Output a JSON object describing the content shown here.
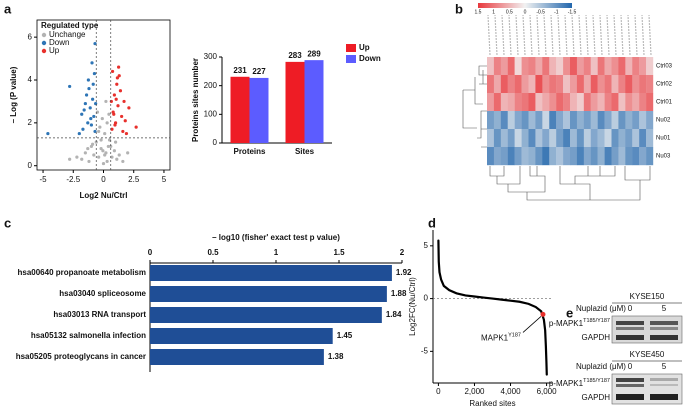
{
  "chart_data": [
    {
      "type": "scatter",
      "panel": "a",
      "xlabel": "Log2 Nu/Ctrl",
      "ylabel": "– Log (P value)",
      "legend_title": "Regulated type",
      "legend": "upper left",
      "xlim": [
        -5.5,
        5.5
      ],
      "xticks": [
        -5,
        -2.5,
        0,
        2.5,
        5
      ],
      "ylim": [
        -0.2,
        6.8
      ],
      "yticks": [
        0,
        2,
        4,
        6
      ],
      "hlines": [
        1.3
      ],
      "vlines": [
        -0.6,
        0.6
      ],
      "series": [
        {
          "name": "Unchange",
          "color": "#b3b3b3",
          "x": [
            -1.8,
            -1.5,
            -1.2,
            -1.0,
            -0.8,
            -0.6,
            -0.4,
            -0.3,
            -0.2,
            -0.1,
            0,
            0.1,
            0.2,
            0.3,
            0.4,
            0.5,
            0.7,
            0.9,
            1.1,
            1.3,
            1.6,
            -2.2,
            -0.5,
            0.3,
            -0.2,
            0.1,
            0.6,
            -0.9,
            1.0,
            -1.3,
            0.2,
            -0.4,
            0.45,
            -0.05,
            2.0,
            -2.8
          ],
          "y": [
            0.3,
            0.6,
            0.2,
            0.9,
            0.5,
            1.1,
            0.4,
            1.8,
            0.8,
            2.2,
            0.1,
            1.5,
            0.6,
            2.0,
            0.9,
            1.2,
            0.4,
            0.7,
            0.3,
            0.5,
            0.2,
            0.4,
            2.5,
            0.2,
            1.2,
            0.5,
            0.9,
            1.0,
            1.1,
            0.8,
            3.0,
            1.6,
            2.4,
            0.7,
            0.6,
            0.3
          ]
        },
        {
          "name": "Down",
          "color": "#2e75b6",
          "x": [
            -0.7,
            -0.8,
            -0.9,
            -1.0,
            -1.1,
            -1.2,
            -1.3,
            -1.5,
            -1.7,
            -0.75,
            -0.95,
            -1.4,
            -1.8,
            -2.0,
            -0.7,
            -1.05,
            -1.25,
            -0.85,
            -2.8,
            -4.6,
            -1.6,
            -0.65
          ],
          "y": [
            1.6,
            2.3,
            3.1,
            1.9,
            2.7,
            3.6,
            2.0,
            2.9,
            1.7,
            4.3,
            4.8,
            3.3,
            2.4,
            1.5,
            5.7,
            2.2,
            4.0,
            3.8,
            3.7,
            1.5,
            2.6,
            2.9
          ]
        },
        {
          "name": "Up",
          "color": "#e8302c",
          "x": [
            0.7,
            0.8,
            0.9,
            1.0,
            1.1,
            1.2,
            1.3,
            1.5,
            1.7,
            0.75,
            0.95,
            1.4,
            1.8,
            2.1,
            1.05,
            1.25,
            0.85,
            1.6,
            2.7,
            0.65,
            1.15,
            1.9
          ],
          "y": [
            1.7,
            2.5,
            3.3,
            2.0,
            3.8,
            2.8,
            4.2,
            2.3,
            3.0,
            4.4,
            1.9,
            3.5,
            2.1,
            2.7,
            3.1,
            4.6,
            2.4,
            1.6,
            1.8,
            3.0,
            4.1,
            1.5
          ]
        }
      ]
    },
    {
      "type": "bar",
      "ylabel": "Proteins sites number",
      "categories": [
        "Proteins",
        "Sites"
      ],
      "legend": "upper right",
      "ylim": [
        0,
        300
      ],
      "yticks": [
        0,
        100,
        200,
        300
      ],
      "series": [
        {
          "name": "Up",
          "color": "#ee1c25",
          "values": [
            231,
            283
          ]
        },
        {
          "name": "Down",
          "color": "#5c5cff",
          "values": [
            227,
            289
          ]
        }
      ]
    },
    {
      "type": "heatmap",
      "panel": "b",
      "rows": [
        "Ctrl03",
        "Ctrl02",
        "Ctrl01",
        "Nu02",
        "Nu01",
        "Nu03"
      ],
      "colorbar_ticks": [
        1.5,
        1,
        0.5,
        0,
        -0.5,
        -1,
        -1.5
      ],
      "colors": [
        "#2166ac",
        "#f2f2f2",
        "#e8383d"
      ],
      "values": [
        [
          0.4,
          0.9,
          0.7,
          1.1,
          0.2,
          0.8,
          0.9,
          0.6,
          1.0,
          0.5,
          0.3,
          0.8,
          1.2,
          0.7,
          0.9,
          0.4,
          1.0,
          0.6,
          0.8,
          1.1,
          0.5,
          0.9,
          0.7,
          0.3
        ],
        [
          1.0,
          0.6,
          1.2,
          0.9,
          1.1,
          0.7,
          0.5,
          1.3,
          0.8,
          1.0,
          0.9,
          0.4,
          0.7,
          1.1,
          0.6,
          1.2,
          0.8,
          1.0,
          0.5,
          0.9,
          1.2,
          0.8,
          1.0,
          0.9
        ],
        [
          0.7,
          1.1,
          0.5,
          0.6,
          0.9,
          1.0,
          1.2,
          0.4,
          0.6,
          0.8,
          1.1,
          0.9,
          0.5,
          0.3,
          1.0,
          0.7,
          0.5,
          0.9,
          1.1,
          0.4,
          0.8,
          0.6,
          0.9,
          1.1
        ],
        [
          -0.9,
          -0.7,
          -1.1,
          -0.4,
          -0.8,
          -1.0,
          -0.6,
          -0.9,
          -0.3,
          -1.2,
          -0.8,
          -0.5,
          -1.0,
          -0.7,
          -0.9,
          -0.6,
          -1.1,
          -0.8,
          -0.4,
          -1.0,
          -0.7,
          -0.9,
          -0.5,
          -0.8
        ],
        [
          -0.5,
          -1.0,
          -0.6,
          -0.9,
          -0.3,
          -0.7,
          -1.1,
          -0.5,
          -0.8,
          -0.4,
          -0.9,
          -1.2,
          -0.6,
          -1.0,
          -0.4,
          -0.8,
          -0.6,
          -0.3,
          -1.0,
          -0.7,
          -0.9,
          -0.5,
          -1.1,
          -0.6
        ],
        [
          -1.1,
          -0.8,
          -0.9,
          -1.2,
          -0.9,
          -0.6,
          -0.7,
          -1.0,
          -1.3,
          -0.7,
          -0.5,
          -0.8,
          -0.9,
          -1.2,
          -0.8,
          -1.0,
          -0.7,
          -1.2,
          -0.9,
          -0.6,
          -1.0,
          -1.1,
          -0.8,
          -1.0
        ]
      ]
    },
    {
      "type": "hbar",
      "panel": "c",
      "title": "– log10 (fisher' exact test p value)",
      "color": "#1f4e96",
      "categories": [
        "hsa00640 propanoate metabolism",
        "hsa03040 spliceosome",
        "hsa03013 RNA transport",
        "hsa05132 salmonella infection",
        "hsa05205 proteoglycans in cancer"
      ],
      "values": [
        1.92,
        1.88,
        1.84,
        1.45,
        1.38
      ],
      "xlim": [
        0,
        2
      ],
      "xticks": [
        0,
        0.5,
        1,
        1.5,
        2
      ]
    },
    {
      "type": "line",
      "panel": "d",
      "xlabel": "Ranked sites",
      "ylabel": "Log2FC(Nu/Ctrl)",
      "color": "#000000",
      "xlim": [
        -300,
        6300
      ],
      "xticks": [
        0,
        {
          "value": 2000,
          "label": "2,000"
        },
        {
          "value": 4000,
          "label": "4,000"
        },
        {
          "value": 6000,
          "label": "6,000"
        }
      ],
      "ylim": [
        -8,
        6.5
      ],
      "yticks": [
        -5,
        0,
        5
      ],
      "hlines": [
        0
      ],
      "x": [
        0,
        20,
        60,
        150,
        300,
        600,
        1000,
        1500,
        2000,
        2500,
        3000,
        3500,
        4000,
        4500,
        5000,
        5400,
        5700,
        5850,
        5920,
        5960,
        5990,
        6010
      ],
      "y": [
        5.5,
        3.5,
        2.5,
        1.8,
        1.2,
        0.8,
        0.5,
        0.3,
        0.2,
        0.1,
        0,
        -0.1,
        -0.2,
        -0.3,
        -0.5,
        -0.8,
        -1.2,
        -2,
        -3,
        -4.5,
        -6,
        -7.2
      ],
      "highlight": {
        "label": "MAPK1",
        "sup": "Y187",
        "x": 5800,
        "y": -1.5,
        "color": "#e8302c"
      }
    }
  ],
  "blot": {
    "panel": "e",
    "treatment": "Nuplazid (μM)",
    "groups": [
      {
        "cell_line": "KYSE150",
        "doses": [
          0,
          5
        ],
        "rows": [
          {
            "name": "p-MAPK1",
            "sup": "T185/Y187"
          },
          {
            "name": "GAPDH"
          }
        ]
      },
      {
        "cell_line": "KYSE450",
        "doses": [
          0,
          5
        ],
        "rows": [
          {
            "name": "p-MAPK1",
            "sup": "T185/Y187"
          },
          {
            "name": "GAPDH"
          }
        ]
      }
    ]
  }
}
